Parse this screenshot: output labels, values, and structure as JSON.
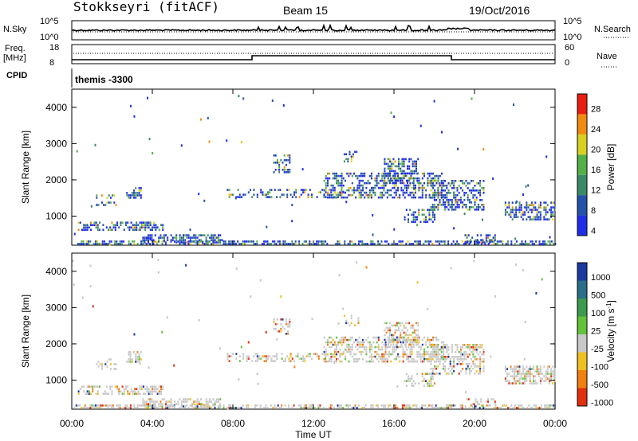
{
  "header": {
    "title": "Stokkseyri (fitACF)",
    "beam": "Beam 15",
    "date": "19/Oct/2016"
  },
  "top_panels": {
    "nsky_label": "N.Sky",
    "nsky_ticks": [
      "10^5",
      "10^0"
    ],
    "nsearch_label": "N.Search",
    "nsearch_ticks_right": [
      "10^5",
      "10^0"
    ],
    "freq_label": "Freq.",
    "freq_unit": "[MHz]",
    "freq_ticks": [
      "18",
      "8"
    ],
    "nave_label": "Nave",
    "nave_ticks": [
      "60",
      "0"
    ],
    "cpid_label": "CPID",
    "cpid_value": "themis -3300"
  },
  "chart_data": [
    {
      "type": "heatmap",
      "name": "power",
      "ylabel": "Slant Range [km]",
      "yticks": [
        "1000",
        "2000",
        "3000",
        "4000"
      ],
      "ylim": [
        200,
        4500
      ],
      "colorbar_label": "Power [dB]",
      "colorbar_ticks": [
        "4",
        "8",
        "12",
        "16",
        "20",
        "24",
        "28"
      ],
      "colorbar_colors": [
        "#1f2ee6",
        "#2452a8",
        "#3a8a68",
        "#53b046",
        "#d8d020",
        "#f08a10",
        "#e81e10"
      ]
    },
    {
      "type": "heatmap",
      "name": "velocity",
      "ylabel": "Slant Range [km]",
      "yticks": [
        "1000",
        "2000",
        "3000",
        "4000"
      ],
      "ylim": [
        200,
        4500
      ],
      "colorbar_label": "Velocity [m s^-1]",
      "colorbar_ticks": [
        "1000",
        "500",
        "100",
        "25",
        "-25",
        "-100",
        "-500",
        "-1000"
      ],
      "colorbar_colors": [
        "#1a3aa0",
        "#2a6e8a",
        "#3c9a4c",
        "#62c23a",
        "#c8c8c8",
        "#eec020",
        "#f08010",
        "#e03010"
      ]
    }
  ],
  "xaxis": {
    "label": "Time UT",
    "ticks": [
      "00:00",
      "04:00",
      "08:00",
      "12:00",
      "16:00",
      "20:00",
      "00:00"
    ]
  }
}
